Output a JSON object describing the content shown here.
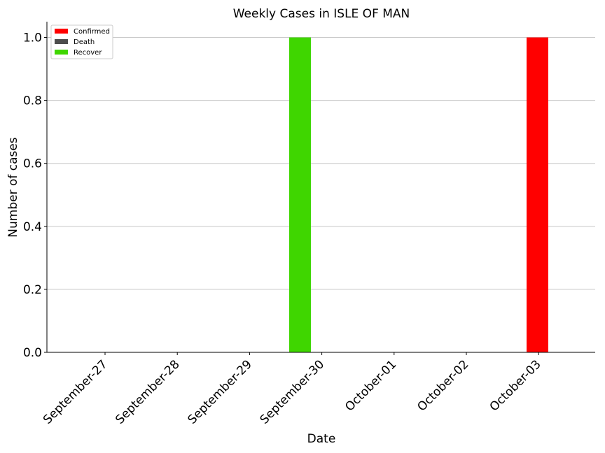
{
  "chart_data": {
    "type": "bar",
    "title": "Weekly Cases in ISLE OF MAN",
    "xlabel": "Date",
    "ylabel": "Number of cases",
    "categories": [
      "September-27",
      "September-28",
      "September-29",
      "September-30",
      "October-01",
      "October-02",
      "October-03"
    ],
    "series": [
      {
        "name": "Confirmed",
        "color": "#ff0000",
        "values": [
          0,
          0,
          0,
          0,
          0,
          0,
          1
        ]
      },
      {
        "name": "Death",
        "color": "#4d4d4d",
        "values": [
          0,
          0,
          0,
          0,
          0,
          0,
          0
        ]
      },
      {
        "name": "Recover",
        "color": "#3fd600",
        "values": [
          0,
          0,
          0,
          1,
          0,
          0,
          0
        ]
      }
    ],
    "ylim": [
      0,
      1.05
    ],
    "yticks": [
      "0.0",
      "0.2",
      "0.4",
      "0.6",
      "0.8",
      "1.0"
    ],
    "grid": "horizontal",
    "legend_position": "top-left"
  }
}
